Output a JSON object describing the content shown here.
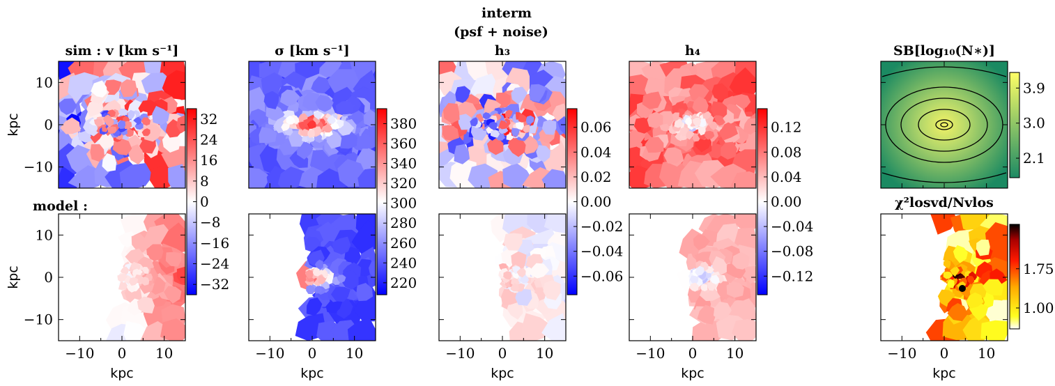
{
  "figure": {
    "title_line1": "interm",
    "title_line2": "(psf + noise)",
    "row_label_model": "model :"
  },
  "chart_data": {
    "type": "heatmap",
    "x_label": "kpc",
    "y_label": "kpc",
    "x_ticks": [
      "−10",
      "0",
      "10"
    ],
    "y_ticks": [
      "10",
      "0",
      "−10"
    ],
    "xlim": [
      -15,
      15
    ],
    "ylim": [
      -15,
      15
    ],
    "panels": [
      {
        "id": "v",
        "title": "sim : v [km s⁻¹]",
        "cmap": "bwr",
        "vmin": -36,
        "vmax": 36,
        "cbar_ticks": [
          {
            "v": 32,
            "label": "32"
          },
          {
            "v": 24,
            "label": "24"
          },
          {
            "v": 16,
            "label": "16"
          },
          {
            "v": 8,
            "label": "8"
          },
          {
            "v": 0,
            "label": "0"
          },
          {
            "v": -8,
            "label": "−8"
          },
          {
            "v": -16,
            "label": "−16"
          },
          {
            "v": -24,
            "label": "−24"
          },
          {
            "v": -32,
            "label": "−32"
          }
        ]
      },
      {
        "id": "sigma",
        "title": "σ [km s⁻¹]",
        "cmap": "bwr",
        "vmin": 208,
        "vmax": 395,
        "cbar_ticks": [
          {
            "v": 380,
            "label": "380"
          },
          {
            "v": 360,
            "label": "360"
          },
          {
            "v": 340,
            "label": "340"
          },
          {
            "v": 320,
            "label": "320"
          },
          {
            "v": 300,
            "label": "300"
          },
          {
            "v": 280,
            "label": "280"
          },
          {
            "v": 260,
            "label": "260"
          },
          {
            "v": 240,
            "label": "240"
          },
          {
            "v": 220,
            "label": "220"
          }
        ]
      },
      {
        "id": "h3",
        "title": "h₃",
        "cmap": "bwr",
        "vmin": -0.075,
        "vmax": 0.075,
        "cbar_ticks": [
          {
            "v": 0.06,
            "label": "0.06"
          },
          {
            "v": 0.04,
            "label": "0.04"
          },
          {
            "v": 0.02,
            "label": "0.02"
          },
          {
            "v": 0,
            "label": "0.00"
          },
          {
            "v": -0.02,
            "label": "−0.02"
          },
          {
            "v": -0.04,
            "label": "−0.04"
          },
          {
            "v": -0.06,
            "label": "−0.06"
          }
        ]
      },
      {
        "id": "h4",
        "title": "h₄",
        "cmap": "bwr",
        "vmin": -0.15,
        "vmax": 0.15,
        "cbar_ticks": [
          {
            "v": 0.12,
            "label": "0.12"
          },
          {
            "v": 0.08,
            "label": "0.08"
          },
          {
            "v": 0.04,
            "label": "0.04"
          },
          {
            "v": 0,
            "label": "0.00"
          },
          {
            "v": -0.04,
            "label": "−0.04"
          },
          {
            "v": -0.08,
            "label": "−0.08"
          },
          {
            "v": -0.12,
            "label": "−0.12"
          }
        ]
      },
      {
        "id": "sb",
        "title": "SB[log₁₀(N∗)]",
        "cmap": "summer",
        "vmin": 1.6,
        "vmax": 4.3,
        "cbar_ticks": [
          {
            "v": 3.9,
            "label": "3.9"
          },
          {
            "v": 3.0,
            "label": "3.0"
          },
          {
            "v": 2.1,
            "label": "2.1"
          }
        ]
      },
      {
        "id": "chi2",
        "title": "χ²losvd/Nvlos",
        "cmap": "hot_r",
        "vmin": 0.6,
        "vmax": 2.6,
        "cbar_ticks": [
          {
            "v": 1.75,
            "label": "1.75"
          },
          {
            "v": 1.0,
            "label": "1.00"
          }
        ]
      }
    ]
  }
}
